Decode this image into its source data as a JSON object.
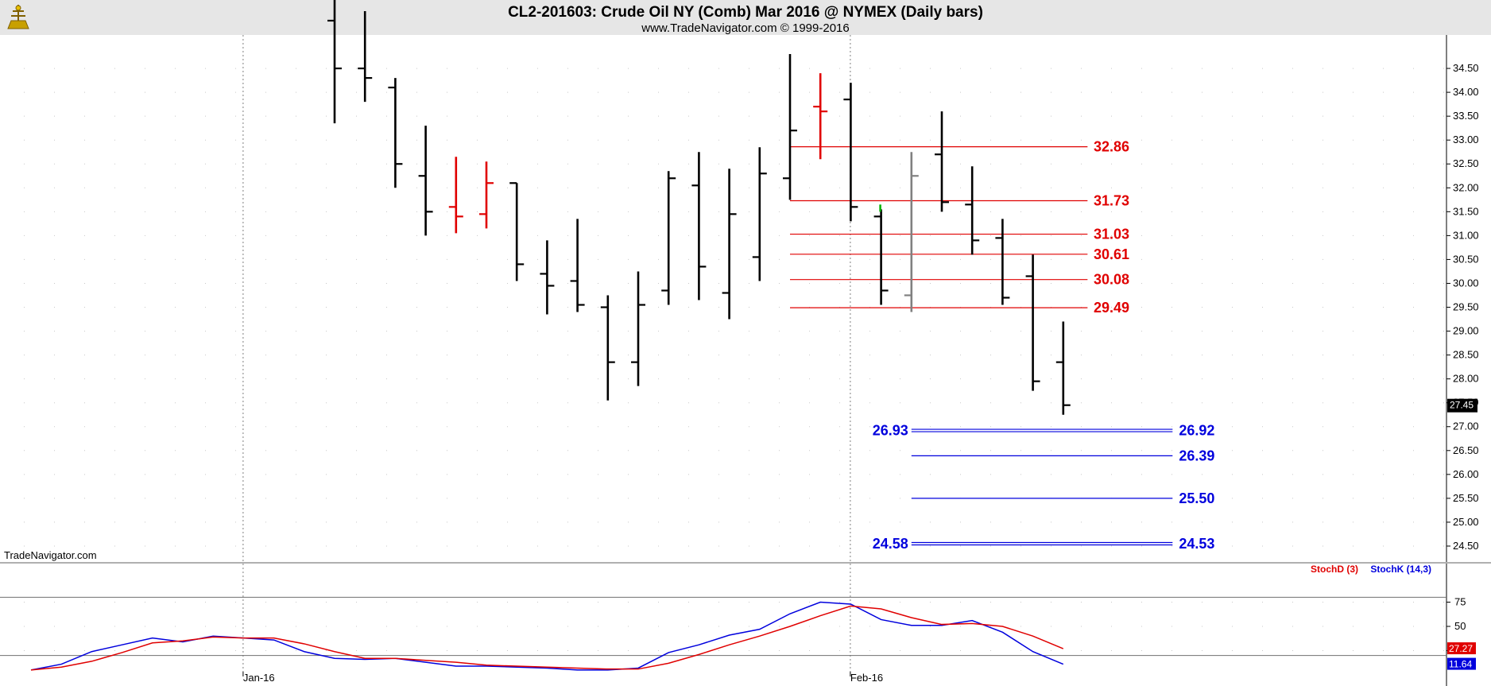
{
  "header": {
    "title": "CL2-201603:  Crude Oil NY (Comb) Mar 2016 @ NYMEX  (Daily bars)",
    "subtitle": "www.TradeNavigator.com © 1999-2016",
    "watermark": "TradeNavigator.com",
    "logo_icon": "sextant-logo-icon"
  },
  "colors": {
    "bar_up": "#000000",
    "bar_red": "#e00000",
    "bar_gray": "#808080",
    "resistance": "#e00000",
    "support": "#0000dd",
    "stoch_d": "#e00000",
    "stoch_k": "#0000dd",
    "header_bg": "#e6e6e6"
  },
  "chart_data": [
    {
      "type": "ohlc",
      "ylim": [
        24.2,
        35.2
      ],
      "y_ticks": [
        "24.50",
        "25.00",
        "25.50",
        "26.00",
        "26.50",
        "27.00",
        "27.50",
        "28.00",
        "28.50",
        "29.00",
        "29.50",
        "30.00",
        "30.50",
        "31.00",
        "31.50",
        "32.00",
        "32.50",
        "33.00",
        "33.50",
        "34.00",
        "34.50"
      ],
      "x_labels": [
        {
          "label": "Jan-16",
          "index": 7
        },
        {
          "label": "Feb-16",
          "index": 27
        }
      ],
      "last_price": "27.45",
      "bars": [
        {
          "i": 10,
          "o": 35.5,
          "h": 36.4,
          "l": 33.35,
          "c": 34.5,
          "color": "black"
        },
        {
          "i": 11,
          "o": 34.5,
          "h": 35.7,
          "l": 33.8,
          "c": 34.3,
          "color": "black"
        },
        {
          "i": 12,
          "o": 34.1,
          "h": 34.3,
          "l": 32.0,
          "c": 32.5,
          "color": "black"
        },
        {
          "i": 13,
          "o": 32.25,
          "h": 33.3,
          "l": 31.0,
          "c": 31.5,
          "color": "black"
        },
        {
          "i": 14,
          "o": 31.6,
          "h": 32.65,
          "l": 31.05,
          "c": 31.4,
          "color": "red"
        },
        {
          "i": 15,
          "o": 31.45,
          "h": 32.55,
          "l": 31.15,
          "c": 32.1,
          "color": "red"
        },
        {
          "i": 16,
          "o": 32.1,
          "h": 32.1,
          "l": 30.05,
          "c": 30.4,
          "color": "black"
        },
        {
          "i": 17,
          "o": 30.2,
          "h": 30.9,
          "l": 29.35,
          "c": 29.95,
          "color": "black"
        },
        {
          "i": 18,
          "o": 30.05,
          "h": 31.35,
          "l": 29.4,
          "c": 29.55,
          "color": "black"
        },
        {
          "i": 19,
          "o": 29.5,
          "h": 29.75,
          "l": 27.55,
          "c": 28.35,
          "color": "black"
        },
        {
          "i": 20,
          "o": 28.35,
          "h": 30.25,
          "l": 27.85,
          "c": 29.55,
          "color": "black"
        },
        {
          "i": 21,
          "o": 29.85,
          "h": 32.35,
          "l": 29.55,
          "c": 32.2,
          "color": "black"
        },
        {
          "i": 22,
          "o": 32.05,
          "h": 32.75,
          "l": 29.65,
          "c": 30.35,
          "color": "black"
        },
        {
          "i": 23,
          "o": 29.8,
          "h": 32.4,
          "l": 29.25,
          "c": 31.45,
          "color": "black"
        },
        {
          "i": 24,
          "o": 30.55,
          "h": 32.85,
          "l": 30.05,
          "c": 32.3,
          "color": "black"
        },
        {
          "i": 25,
          "o": 32.2,
          "h": 34.8,
          "l": 31.75,
          "c": 33.2,
          "color": "black"
        },
        {
          "i": 26,
          "o": 33.7,
          "h": 34.4,
          "l": 32.6,
          "c": 33.6,
          "color": "red"
        },
        {
          "i": 27,
          "o": 33.85,
          "h": 34.2,
          "l": 31.3,
          "c": 31.6,
          "color": "black"
        },
        {
          "i": 28,
          "o": 31.4,
          "h": 31.55,
          "l": 29.55,
          "c": 29.85,
          "color": "black"
        },
        {
          "i": 29,
          "o": 29.75,
          "h": 32.75,
          "l": 29.4,
          "c": 32.25,
          "color": "gray"
        },
        {
          "i": 30,
          "o": 32.7,
          "h": 33.6,
          "l": 31.5,
          "c": 31.7,
          "color": "black"
        },
        {
          "i": 31,
          "o": 31.65,
          "h": 32.45,
          "l": 30.6,
          "c": 30.9,
          "color": "black"
        },
        {
          "i": 32,
          "o": 30.95,
          "h": 31.35,
          "l": 29.55,
          "c": 29.7,
          "color": "black"
        },
        {
          "i": 33,
          "o": 30.15,
          "h": 30.6,
          "l": 27.75,
          "c": 27.95,
          "color": "black"
        },
        {
          "i": 34,
          "o": 28.35,
          "h": 29.2,
          "l": 27.25,
          "c": 27.45,
          "color": "black"
        }
      ],
      "resistance_levels": [
        {
          "value": 32.86,
          "label": "32.86",
          "from": 25,
          "to": 34.8,
          "label_at": 35.0
        },
        {
          "value": 31.73,
          "label": "31.73",
          "from": 25,
          "to": 34.8,
          "label_at": 35.0
        },
        {
          "value": 31.03,
          "label": "31.03",
          "from": 25,
          "to": 34.8,
          "label_at": 35.0
        },
        {
          "value": 30.61,
          "label": "30.61",
          "from": 25,
          "to": 34.8,
          "label_at": 35.0
        },
        {
          "value": 30.08,
          "label": "30.08",
          "from": 25,
          "to": 34.8,
          "label_at": 35.0
        },
        {
          "value": 29.49,
          "label": "29.49",
          "from": 25,
          "to": 34.8,
          "label_at": 35.0
        }
      ],
      "support_levels": [
        {
          "value": 26.92,
          "label_right": "26.92",
          "label_left": "26.93",
          "from": 29,
          "to": 37.6,
          "double": true
        },
        {
          "value": 26.39,
          "label_right": "26.39",
          "label_left": "",
          "from": 29,
          "to": 37.6,
          "double": false
        },
        {
          "value": 25.5,
          "label_right": "25.50",
          "label_left": "",
          "from": 29,
          "to": 37.6,
          "double": false
        },
        {
          "value": 24.55,
          "label_right": "24.53",
          "label_left": "24.58",
          "from": 29,
          "to": 37.6,
          "double": true
        }
      ]
    },
    {
      "type": "line",
      "ylim": [
        0,
        100
      ],
      "y_ticks": [
        "75",
        "50",
        "25"
      ],
      "reference_lines": [
        80,
        20
      ],
      "legend": [
        "StochD (3)",
        "StochK (14,3)"
      ],
      "tag_d": "27.27",
      "tag_k": "11.64",
      "series": [
        {
          "name": "StochK (14,3)",
          "color": "blue",
          "x": [
            0,
            1,
            2,
            3,
            4,
            5,
            6,
            7,
            8,
            9,
            10,
            11,
            12,
            13,
            14,
            15,
            16,
            17,
            18,
            19,
            20,
            21,
            22,
            23,
            24,
            25,
            26,
            27,
            28,
            29,
            30,
            31,
            32,
            33,
            34
          ],
          "values": [
            5,
            11,
            24,
            31,
            38,
            34,
            40,
            38,
            36,
            24,
            17,
            16,
            17,
            13,
            9,
            9,
            8,
            7,
            5,
            5,
            7,
            23,
            31,
            41,
            47,
            63,
            75,
            73,
            57,
            51,
            51,
            56,
            44,
            24,
            11
          ]
        },
        {
          "name": "StochD (3)",
          "color": "red",
          "x": [
            0,
            1,
            2,
            3,
            4,
            5,
            6,
            7,
            8,
            9,
            10,
            11,
            12,
            13,
            14,
            15,
            16,
            17,
            18,
            19,
            20,
            21,
            22,
            23,
            24,
            25,
            26,
            27,
            28,
            29,
            30,
            31,
            32,
            33,
            34
          ],
          "values": [
            5,
            8,
            14,
            23,
            33,
            35,
            39,
            38,
            38,
            32,
            24,
            17,
            17,
            15,
            13,
            10,
            9,
            8,
            7,
            6,
            6,
            12,
            21,
            31,
            40,
            50,
            61,
            71,
            68,
            59,
            52,
            53,
            50,
            40,
            27
          ]
        }
      ]
    }
  ]
}
